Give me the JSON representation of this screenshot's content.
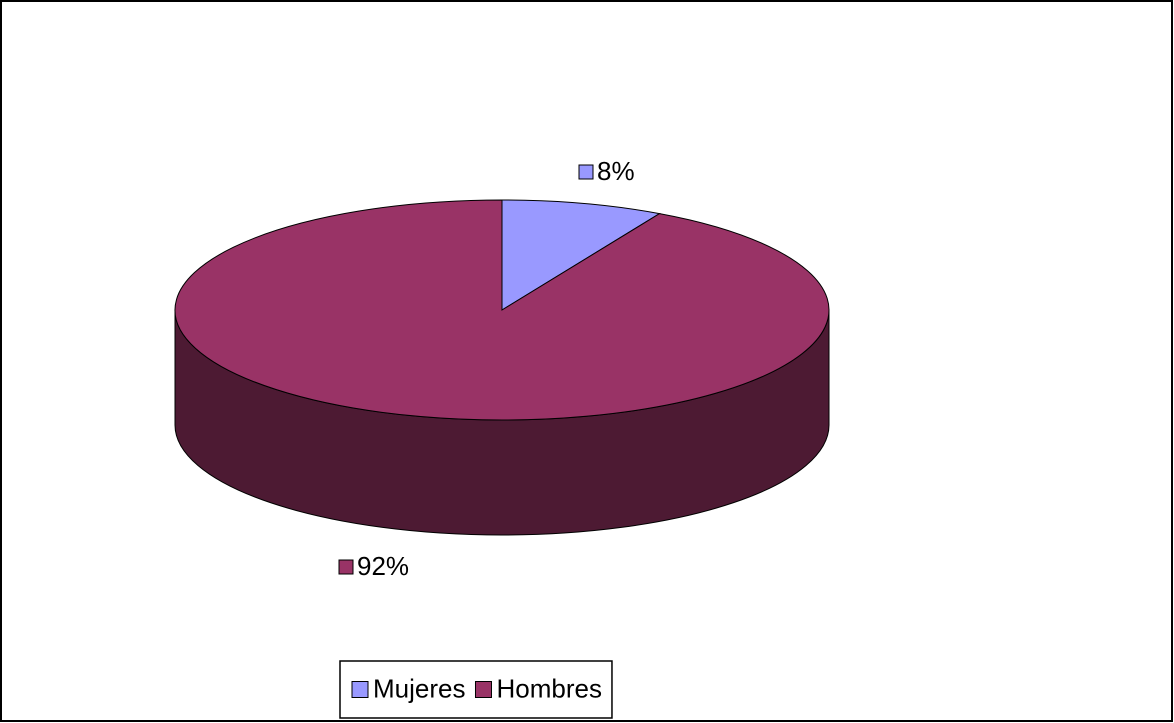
{
  "chart_data": {
    "type": "pie",
    "categories": [
      "Mujeres",
      "Hombres"
    ],
    "values": [
      8,
      92
    ],
    "value_labels": [
      "8%",
      "92%"
    ],
    "colors": [
      "#9999ff",
      "#993366"
    ],
    "legend": "bottom"
  }
}
